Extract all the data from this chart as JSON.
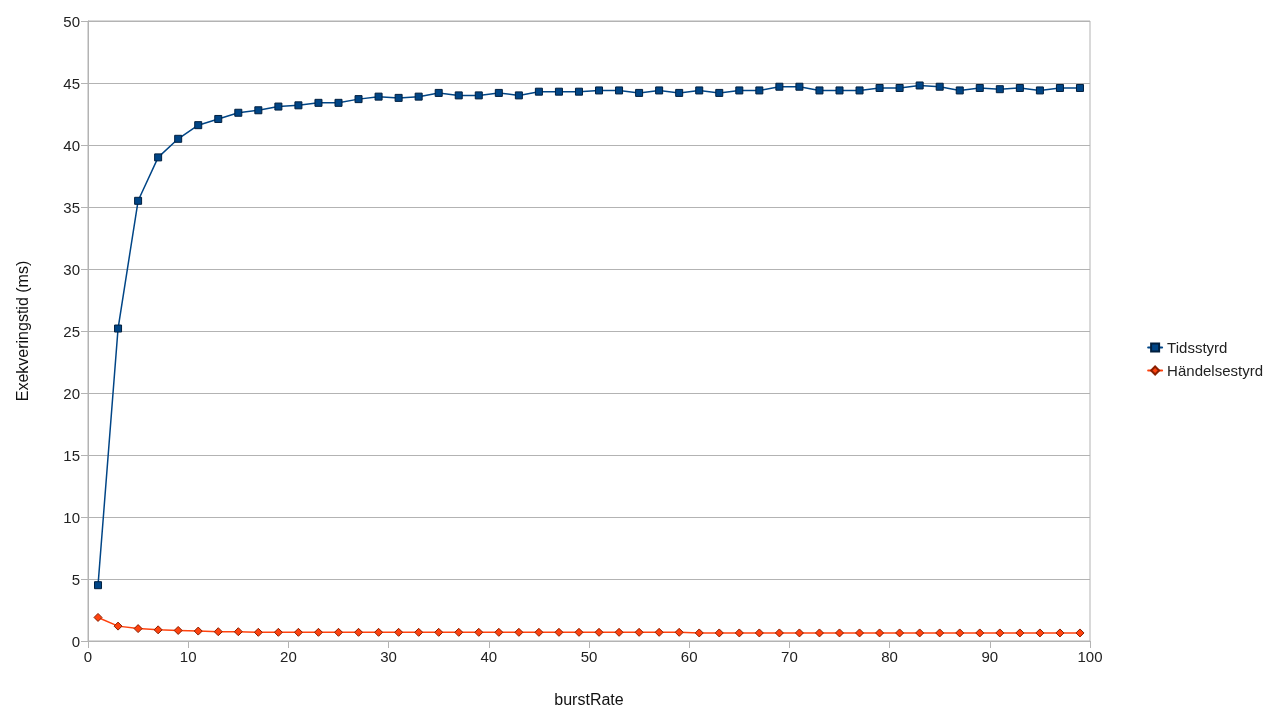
{
  "chart_data": {
    "type": "line",
    "xlabel": "burstRate",
    "ylabel": "Exekveringstid (ms)",
    "x": [
      1,
      3,
      5,
      7,
      9,
      11,
      13,
      15,
      17,
      19,
      21,
      23,
      25,
      27,
      29,
      31,
      33,
      35,
      37,
      39,
      41,
      43,
      45,
      47,
      49,
      51,
      53,
      55,
      57,
      59,
      61,
      63,
      65,
      67,
      69,
      71,
      73,
      75,
      77,
      79,
      81,
      83,
      85,
      87,
      89,
      91,
      93,
      95,
      97,
      99
    ],
    "series": [
      {
        "name": "Tidsstyrd",
        "color": "#004586",
        "marker": "square",
        "values": [
          4.5,
          25.2,
          35.5,
          39.0,
          40.5,
          41.6,
          42.1,
          42.6,
          42.8,
          43.1,
          43.2,
          43.4,
          43.4,
          43.7,
          43.9,
          43.8,
          43.9,
          44.2,
          44.0,
          44.0,
          44.2,
          44.0,
          44.3,
          44.3,
          44.3,
          44.4,
          44.4,
          44.2,
          44.4,
          44.2,
          44.4,
          44.2,
          44.4,
          44.4,
          44.7,
          44.7,
          44.4,
          44.4,
          44.4,
          44.6,
          44.6,
          44.8,
          44.7,
          44.4,
          44.6,
          44.5,
          44.6,
          44.4,
          44.6,
          44.6
        ]
      },
      {
        "name": "Händelsestyrd",
        "color": "#ff420e",
        "marker": "diamond",
        "values": [
          1.9,
          1.2,
          1.0,
          0.9,
          0.85,
          0.8,
          0.75,
          0.75,
          0.7,
          0.7,
          0.7,
          0.7,
          0.7,
          0.7,
          0.7,
          0.7,
          0.7,
          0.7,
          0.7,
          0.7,
          0.7,
          0.7,
          0.7,
          0.7,
          0.7,
          0.7,
          0.7,
          0.7,
          0.7,
          0.7,
          0.65,
          0.65,
          0.65,
          0.65,
          0.65,
          0.65,
          0.65,
          0.65,
          0.65,
          0.65,
          0.65,
          0.65,
          0.65,
          0.65,
          0.65,
          0.65,
          0.65,
          0.65,
          0.65,
          0.65
        ]
      }
    ],
    "xlim": [
      0,
      100
    ],
    "xticks": [
      0,
      10,
      20,
      30,
      40,
      50,
      60,
      70,
      80,
      90,
      100
    ],
    "ylim": [
      0,
      50
    ],
    "yticks": [
      0,
      5,
      10,
      15,
      20,
      25,
      30,
      35,
      40,
      45,
      50
    ],
    "grid": "y",
    "legend": "right"
  }
}
